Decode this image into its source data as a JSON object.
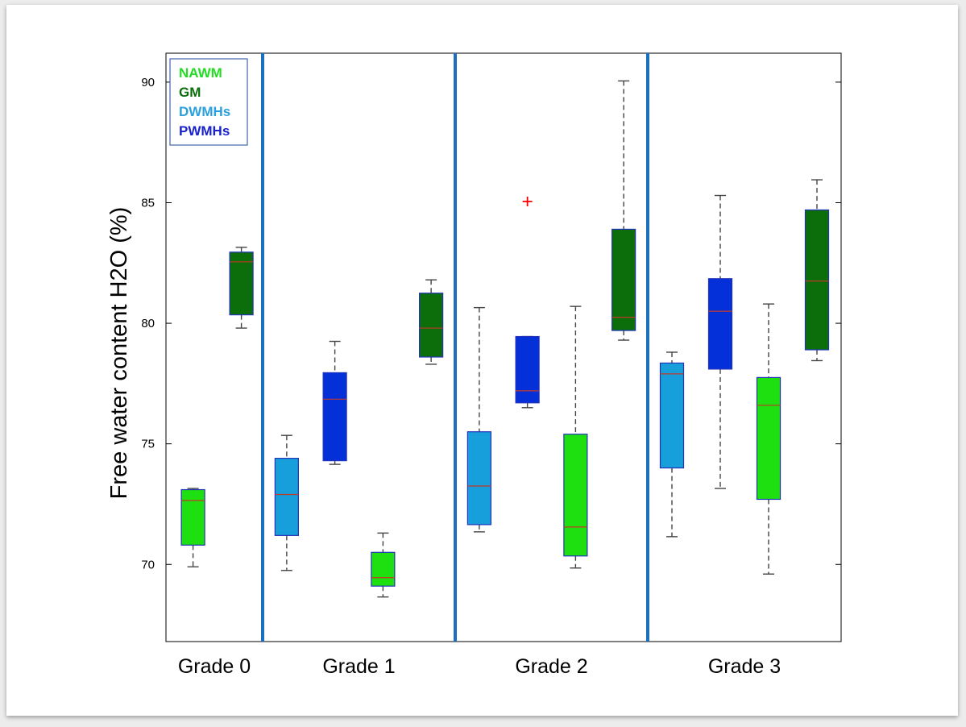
{
  "chart_data": {
    "type": "box",
    "title": "",
    "xlabel": "",
    "ylabel": "Free water content H2O (%)",
    "ylim": [
      66.8,
      91.2
    ],
    "yticks": [
      70,
      75,
      80,
      85,
      90
    ],
    "groups": [
      "Grade 0",
      "Grade 1",
      "Grade 2",
      "Grade 3"
    ],
    "legend": {
      "placement": "top-left",
      "entries": [
        {
          "label": "NAWM",
          "color": "#22dd22"
        },
        {
          "label": "GM",
          "color": "#0b6e0b"
        },
        {
          "label": "DWMHs",
          "color": "#2aa0dd"
        },
        {
          "label": "PWMHs",
          "color": "#1a22cc"
        }
      ]
    },
    "colors": {
      "NAWM": "#1ee010",
      "GM": "#0b6e0b",
      "DWMHs": "#169fda",
      "PWMHs": "#0330d8",
      "box_edge": "#2233bb",
      "median": "#c0392b",
      "whisker": "#444444",
      "outlier": "#ff0000",
      "separator": "#1a6fbf"
    },
    "boxes": [
      {
        "group": "Grade 0",
        "series": "NAWM",
        "slot": 0.28,
        "whisker_low": 69.9,
        "q1": 70.8,
        "median": 72.65,
        "q3": 73.1,
        "whisker_high": 73.15,
        "outliers": []
      },
      {
        "group": "Grade 0",
        "series": "GM",
        "slot": 0.78,
        "whisker_low": 79.8,
        "q1": 80.35,
        "median": 82.55,
        "q3": 82.95,
        "whisker_high": 83.15,
        "outliers": []
      },
      {
        "group": "Grade 1",
        "series": "DWMHs",
        "slot": 0.125,
        "whisker_low": 69.75,
        "q1": 71.2,
        "median": 72.9,
        "q3": 74.4,
        "whisker_high": 75.35,
        "outliers": []
      },
      {
        "group": "Grade 1",
        "series": "PWMHs",
        "slot": 0.375,
        "whisker_low": 74.15,
        "q1": 74.3,
        "median": 76.85,
        "q3": 77.95,
        "whisker_high": 79.25,
        "outliers": []
      },
      {
        "group": "Grade 1",
        "series": "NAWM",
        "slot": 0.625,
        "whisker_low": 68.65,
        "q1": 69.1,
        "median": 69.45,
        "q3": 70.5,
        "whisker_high": 71.3,
        "outliers": []
      },
      {
        "group": "Grade 1",
        "series": "GM",
        "slot": 0.875,
        "whisker_low": 78.3,
        "q1": 78.6,
        "median": 79.8,
        "q3": 81.25,
        "whisker_high": 81.8,
        "outliers": []
      },
      {
        "group": "Grade 2",
        "series": "DWMHs",
        "slot": 0.125,
        "whisker_low": 71.35,
        "q1": 71.65,
        "median": 73.25,
        "q3": 75.5,
        "whisker_high": 80.65,
        "outliers": []
      },
      {
        "group": "Grade 2",
        "series": "PWMHs",
        "slot": 0.375,
        "whisker_low": 76.5,
        "q1": 76.7,
        "median": 77.2,
        "q3": 79.45,
        "whisker_high": 79.45,
        "outliers": [
          85.05
        ]
      },
      {
        "group": "Grade 2",
        "series": "NAWM",
        "slot": 0.625,
        "whisker_low": 69.85,
        "q1": 70.35,
        "median": 71.55,
        "q3": 75.4,
        "whisker_high": 80.7,
        "outliers": []
      },
      {
        "group": "Grade 2",
        "series": "GM",
        "slot": 0.875,
        "whisker_low": 79.3,
        "q1": 79.7,
        "median": 80.25,
        "q3": 83.9,
        "whisker_high": 90.05,
        "outliers": []
      },
      {
        "group": "Grade 3",
        "series": "DWMHs",
        "slot": 0.125,
        "whisker_low": 71.15,
        "q1": 74.0,
        "median": 77.9,
        "q3": 78.35,
        "whisker_high": 78.8,
        "outliers": []
      },
      {
        "group": "Grade 3",
        "series": "PWMHs",
        "slot": 0.375,
        "whisker_low": 73.15,
        "q1": 78.1,
        "median": 80.5,
        "q3": 81.85,
        "whisker_high": 85.3,
        "outliers": []
      },
      {
        "group": "Grade 3",
        "series": "NAWM",
        "slot": 0.625,
        "whisker_low": 69.6,
        "q1": 72.7,
        "median": 76.6,
        "q3": 77.75,
        "whisker_high": 80.8,
        "outliers": []
      },
      {
        "group": "Grade 3",
        "series": "GM",
        "slot": 0.875,
        "whisker_low": 78.45,
        "q1": 78.9,
        "median": 81.75,
        "q3": 84.7,
        "whisker_high": 85.95,
        "outliers": []
      }
    ]
  }
}
